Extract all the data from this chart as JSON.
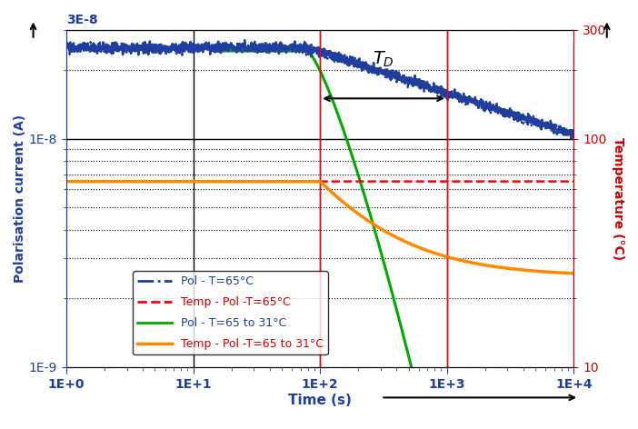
{
  "xlabel": "Time (s)",
  "ylabel_left": "Polarisation current (A)",
  "ylabel_right": "Temperature (°C)",
  "xlim": [
    1,
    10000
  ],
  "ylim_left": [
    1e-09,
    3e-08
  ],
  "ylim_right": [
    10,
    300
  ],
  "legend_labels": [
    "Pol - T=65°C",
    "Temp - Pol -T=65°C",
    "Pol - T=65 to 31°C",
    "Temp - Pol -T=65 to 31°C"
  ],
  "colors": {
    "pol_65": "#1F3E9E",
    "temp_pol_65": "#FF0000",
    "pol_cooling": "#00AA00",
    "temp_cooling": "#FF8800"
  },
  "background_color": "#ffffff"
}
